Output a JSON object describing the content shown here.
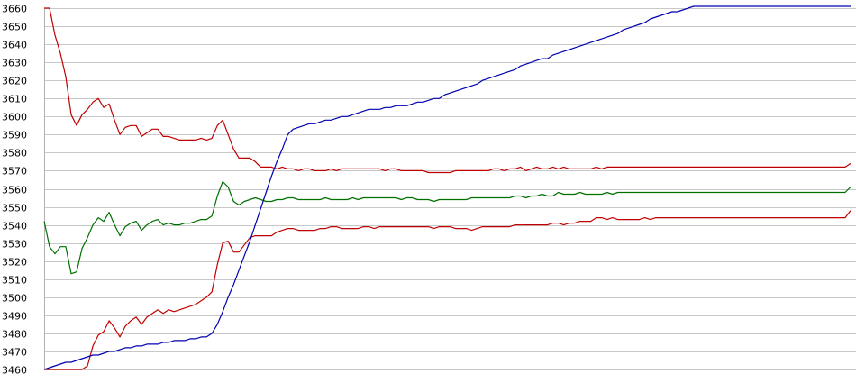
{
  "chart_data": {
    "type": "line",
    "title": "",
    "xlabel": "",
    "ylabel": "",
    "ylim": [
      3460,
      3660
    ],
    "yticks": [
      3460,
      3470,
      3480,
      3490,
      3500,
      3510,
      3520,
      3530,
      3540,
      3550,
      3560,
      3570,
      3580,
      3590,
      3600,
      3610,
      3620,
      3630,
      3640,
      3650,
      3660
    ],
    "grid": true,
    "x": [
      0,
      1,
      2,
      3,
      4,
      5,
      6,
      7,
      8,
      9,
      10,
      11,
      12,
      13,
      14,
      15,
      16,
      17,
      18,
      19,
      20,
      21,
      22,
      23,
      24,
      25,
      26,
      27,
      28,
      29,
      30,
      31,
      32,
      33,
      34,
      35,
      36,
      37,
      38,
      39,
      40,
      41,
      42,
      43,
      44,
      45,
      46,
      47,
      48,
      49,
      50,
      51,
      52,
      53,
      54,
      55,
      56,
      57,
      58,
      59,
      60,
      61,
      62,
      63,
      64,
      65,
      66,
      67,
      68,
      69,
      70,
      71,
      72,
      73,
      74,
      75,
      76,
      77,
      78,
      79,
      80,
      81,
      82,
      83,
      84,
      85,
      86,
      87,
      88,
      89,
      90,
      91,
      92,
      93,
      94,
      95,
      96,
      97,
      98,
      99,
      100,
      101,
      102,
      103,
      104,
      105,
      106,
      107,
      108,
      109,
      110,
      111,
      112,
      113,
      114,
      115,
      116,
      117,
      118,
      119,
      120,
      121,
      122,
      123,
      124,
      125,
      126,
      127,
      128,
      129,
      130,
      131,
      132,
      133,
      134,
      135,
      136,
      137,
      138,
      139,
      140,
      141,
      142,
      143,
      144,
      145,
      146,
      147,
      148,
      149
    ],
    "series": [
      {
        "color": "#c00000",
        "values": [
          3660,
          3660,
          3645,
          3635,
          3622,
          3601,
          3595,
          3601,
          3604,
          3608,
          3610,
          3605,
          3607,
          3598,
          3590,
          3594,
          3595,
          3595,
          3589,
          3591,
          3593,
          3593,
          3589,
          3589,
          3588,
          3587,
          3587,
          3587,
          3587,
          3588,
          3587,
          3588,
          3595,
          3598,
          3590,
          3582,
          3577,
          3577,
          3577,
          3575,
          3572,
          3572,
          3572,
          3571,
          3572,
          3571,
          3571,
          3570,
          3571,
          3571,
          3570,
          3570,
          3570,
          3571,
          3570,
          3571,
          3571,
          3571,
          3571,
          3571,
          3571,
          3571,
          3571,
          3570,
          3571,
          3571,
          3570,
          3570,
          3570,
          3570,
          3570,
          3569,
          3569,
          3569,
          3569,
          3569,
          3570,
          3570,
          3570,
          3570,
          3570,
          3570,
          3570,
          3571,
          3571,
          3570,
          3571,
          3571,
          3572,
          3570,
          3571,
          3572,
          3571,
          3571,
          3572,
          3571,
          3572,
          3571,
          3571,
          3571,
          3571,
          3571,
          3572,
          3571,
          3572,
          3572,
          3572,
          3572,
          3572,
          3572,
          3572,
          3572,
          3572,
          3572,
          3572,
          3572,
          3572,
          3572,
          3572,
          3572,
          3572,
          3572,
          3572,
          3572,
          3572,
          3572,
          3572,
          3572,
          3572,
          3572,
          3572,
          3572,
          3572,
          3572,
          3572,
          3572,
          3572,
          3572,
          3572,
          3572,
          3572,
          3572,
          3572,
          3572,
          3572,
          3572,
          3572,
          3572,
          3572,
          3574
        ]
      },
      {
        "color": "#007000",
        "values": [
          3542,
          3528,
          3524,
          3528,
          3528,
          3513,
          3514,
          3527,
          3533,
          3540,
          3544,
          3542,
          3547,
          3540,
          3534,
          3539,
          3541,
          3542,
          3537,
          3540,
          3542,
          3543,
          3540,
          3541,
          3540,
          3540,
          3541,
          3541,
          3542,
          3543,
          3543,
          3545,
          3556,
          3564,
          3561,
          3553,
          3551,
          3553,
          3554,
          3555,
          3554,
          3553,
          3553,
          3554,
          3554,
          3555,
          3555,
          3554,
          3554,
          3554,
          3554,
          3554,
          3555,
          3554,
          3554,
          3554,
          3554,
          3555,
          3554,
          3555,
          3555,
          3555,
          3555,
          3555,
          3555,
          3555,
          3554,
          3555,
          3555,
          3554,
          3554,
          3554,
          3553,
          3554,
          3554,
          3554,
          3554,
          3554,
          3554,
          3555,
          3555,
          3555,
          3555,
          3555,
          3555,
          3555,
          3555,
          3556,
          3556,
          3555,
          3556,
          3556,
          3557,
          3556,
          3556,
          3558,
          3557,
          3557,
          3557,
          3558,
          3557,
          3557,
          3557,
          3557,
          3558,
          3557,
          3558,
          3558,
          3558,
          3558,
          3558,
          3558,
          3558,
          3558,
          3558,
          3558,
          3558,
          3558,
          3558,
          3558,
          3558,
          3558,
          3558,
          3558,
          3558,
          3558,
          3558,
          3558,
          3558,
          3558,
          3558,
          3558,
          3558,
          3558,
          3558,
          3558,
          3558,
          3558,
          3558,
          3558,
          3558,
          3558,
          3558,
          3558,
          3558,
          3558,
          3558,
          3558,
          3558,
          3561
        ]
      },
      {
        "color": "#c00000",
        "values": [
          3460,
          3460,
          3460,
          3460,
          3460,
          3460,
          3460,
          3460,
          3462,
          3473,
          3479,
          3481,
          3487,
          3483,
          3478,
          3484,
          3487,
          3489,
          3485,
          3489,
          3491,
          3493,
          3491,
          3493,
          3492,
          3493,
          3494,
          3495,
          3496,
          3498,
          3500,
          3503,
          3518,
          3530,
          3531,
          3525,
          3525,
          3529,
          3533,
          3534,
          3534,
          3534,
          3534,
          3536,
          3537,
          3538,
          3538,
          3537,
          3537,
          3537,
          3537,
          3538,
          3538,
          3539,
          3539,
          3538,
          3538,
          3538,
          3538,
          3539,
          3539,
          3538,
          3539,
          3539,
          3539,
          3539,
          3539,
          3539,
          3539,
          3539,
          3539,
          3539,
          3538,
          3539,
          3539,
          3539,
          3538,
          3538,
          3538,
          3537,
          3538,
          3539,
          3539,
          3539,
          3539,
          3539,
          3539,
          3540,
          3540,
          3540,
          3540,
          3540,
          3540,
          3540,
          3541,
          3541,
          3540,
          3541,
          3541,
          3542,
          3542,
          3542,
          3544,
          3544,
          3543,
          3544,
          3543,
          3543,
          3543,
          3543,
          3543,
          3544,
          3543,
          3544,
          3544,
          3544,
          3544,
          3544,
          3544,
          3544,
          3544,
          3544,
          3544,
          3544,
          3544,
          3544,
          3544,
          3544,
          3544,
          3544,
          3544,
          3544,
          3544,
          3544,
          3544,
          3544,
          3544,
          3544,
          3544,
          3544,
          3544,
          3544,
          3544,
          3544,
          3544,
          3544,
          3544,
          3544,
          3544,
          3548
        ]
      },
      {
        "color": "#0000b0",
        "values": [
          3460,
          3461,
          3462,
          3463,
          3464,
          3464,
          3465,
          3466,
          3467,
          3468,
          3468,
          3469,
          3470,
          3470,
          3471,
          3472,
          3472,
          3473,
          3473,
          3474,
          3474,
          3474,
          3475,
          3475,
          3476,
          3476,
          3476,
          3477,
          3477,
          3478,
          3478,
          3480,
          3485,
          3492,
          3500,
          3507,
          3515,
          3523,
          3531,
          3540,
          3549,
          3558,
          3567,
          3575,
          3582,
          3590,
          3593,
          3594,
          3595,
          3596,
          3596,
          3597,
          3598,
          3598,
          3599,
          3600,
          3600,
          3601,
          3602,
          3603,
          3604,
          3604,
          3604,
          3605,
          3605,
          3606,
          3606,
          3606,
          3607,
          3608,
          3608,
          3609,
          3610,
          3610,
          3612,
          3613,
          3614,
          3615,
          3616,
          3617,
          3618,
          3620,
          3621,
          3622,
          3623,
          3624,
          3625,
          3626,
          3628,
          3629,
          3630,
          3631,
          3632,
          3632,
          3634,
          3635,
          3636,
          3637,
          3638,
          3639,
          3640,
          3641,
          3642,
          3643,
          3644,
          3645,
          3646,
          3648,
          3649,
          3650,
          3651,
          3652,
          3654,
          3655,
          3656,
          3657,
          3658,
          3658,
          3659,
          3660,
          3661,
          3661,
          3661,
          3661,
          3661,
          3661,
          3661,
          3661,
          3661,
          3661,
          3661,
          3661,
          3661,
          3661,
          3661,
          3661,
          3661,
          3661,
          3661,
          3661,
          3661,
          3661,
          3661,
          3661,
          3661,
          3661,
          3661,
          3661,
          3661,
          3661
        ]
      }
    ]
  }
}
